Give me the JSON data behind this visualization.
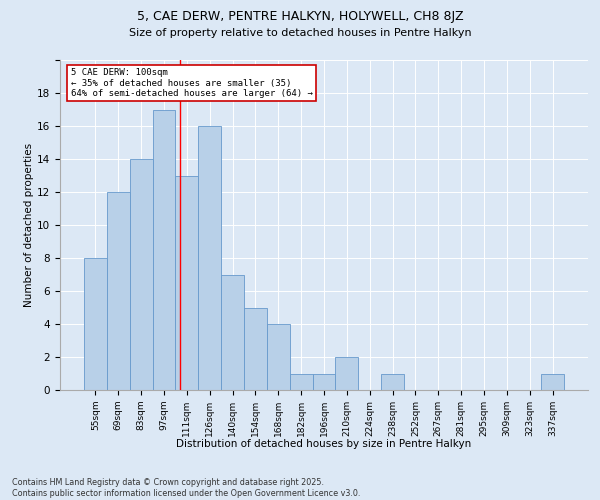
{
  "title": "5, CAE DERW, PENTRE HALKYN, HOLYWELL, CH8 8JZ",
  "subtitle": "Size of property relative to detached houses in Pentre Halkyn",
  "xlabel": "Distribution of detached houses by size in Pentre Halkyn",
  "ylabel": "Number of detached properties",
  "categories": [
    "55sqm",
    "69sqm",
    "83sqm",
    "97sqm",
    "111sqm",
    "126sqm",
    "140sqm",
    "154sqm",
    "168sqm",
    "182sqm",
    "196sqm",
    "210sqm",
    "224sqm",
    "238sqm",
    "252sqm",
    "267sqm",
    "281sqm",
    "295sqm",
    "309sqm",
    "323sqm",
    "337sqm"
  ],
  "values": [
    8,
    12,
    14,
    17,
    13,
    16,
    7,
    5,
    4,
    1,
    1,
    2,
    0,
    1,
    0,
    0,
    0,
    0,
    0,
    0,
    1
  ],
  "bar_color": "#b8d0e8",
  "bar_edge_color": "#6699cc",
  "bg_color": "#dce8f5",
  "red_line_index": 3.72,
  "annotation_text": "5 CAE DERW: 100sqm\n← 35% of detached houses are smaller (35)\n64% of semi-detached houses are larger (64) →",
  "annotation_box_color": "#ffffff",
  "annotation_box_edge": "#cc0000",
  "footer": "Contains HM Land Registry data © Crown copyright and database right 2025.\nContains public sector information licensed under the Open Government Licence v3.0.",
  "ylim": [
    0,
    20
  ],
  "yticks": [
    0,
    2,
    4,
    6,
    8,
    10,
    12,
    14,
    16,
    18,
    20
  ]
}
